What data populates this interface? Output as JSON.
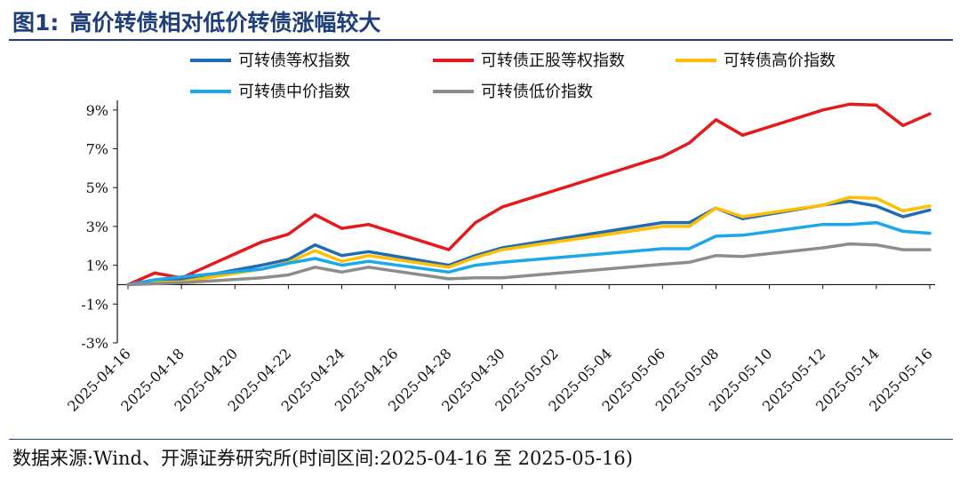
{
  "figure": {
    "label": "图1:",
    "title": "高价转债相对低价转债涨幅较大",
    "source": "数据来源:Wind、开源证券研究所(时间区间:2025-04-16 至 2025-05-16)"
  },
  "chart_data": {
    "type": "line",
    "title": "高价转债相对低价转债涨幅较大",
    "ylim": [
      -3,
      10
    ],
    "yticks": [
      -3,
      -1,
      1,
      3,
      5,
      7,
      9
    ],
    "ytick_labels": [
      "-3%",
      "-1%",
      "1%",
      "3%",
      "5%",
      "7%",
      "9%"
    ],
    "grid": false,
    "legend_position": "top",
    "xtick_labels": [
      "2025-04-16",
      "2025-04-18",
      "2025-04-20",
      "2025-04-22",
      "2025-04-24",
      "2025-04-26",
      "2025-04-28",
      "2025-04-30",
      "2025-05-02",
      "2025-05-04",
      "2025-05-06",
      "2025-05-08",
      "2025-05-10",
      "2025-05-12",
      "2025-05-14",
      "2025-05-16"
    ],
    "x": [
      "2025-04-16",
      "2025-04-17",
      "2025-04-18",
      "2025-04-21",
      "2025-04-22",
      "2025-04-23",
      "2025-04-24",
      "2025-04-25",
      "2025-04-28",
      "2025-04-29",
      "2025-04-30",
      "2025-05-06",
      "2025-05-07",
      "2025-05-08",
      "2025-05-09",
      "2025-05-12",
      "2025-05-13",
      "2025-05-14",
      "2025-05-15",
      "2025-05-16"
    ],
    "series": [
      {
        "name": "可转债等权指数",
        "color": "#1f6bb5",
        "values": [
          0.0,
          0.2,
          0.25,
          1.0,
          1.3,
          2.05,
          1.5,
          1.7,
          1.0,
          1.5,
          1.9,
          3.2,
          3.2,
          3.95,
          3.4,
          4.1,
          4.3,
          4.05,
          3.5,
          3.85
        ]
      },
      {
        "name": "可转债正股等权指数",
        "color": "#e41a1c",
        "values": [
          0.0,
          0.6,
          0.35,
          2.2,
          2.6,
          3.6,
          2.9,
          3.1,
          1.8,
          3.2,
          4.0,
          6.6,
          7.3,
          8.5,
          7.7,
          9.0,
          9.3,
          9.25,
          8.2,
          8.8
        ]
      },
      {
        "name": "可转债高价指数",
        "color": "#ffbf00",
        "values": [
          0.0,
          0.1,
          0.15,
          0.8,
          1.15,
          1.75,
          1.2,
          1.5,
          0.9,
          1.4,
          1.8,
          3.0,
          3.0,
          3.95,
          3.5,
          4.1,
          4.5,
          4.45,
          3.8,
          4.05
        ]
      },
      {
        "name": "可转债中价指数",
        "color": "#1aa7ec",
        "values": [
          0.0,
          0.25,
          0.4,
          0.8,
          1.1,
          1.35,
          1.0,
          1.2,
          0.65,
          1.0,
          1.15,
          1.85,
          1.85,
          2.5,
          2.55,
          3.1,
          3.1,
          3.2,
          2.75,
          2.65
        ]
      },
      {
        "name": "可转债低价指数",
        "color": "#8c8c8c",
        "values": [
          0.0,
          0.05,
          0.1,
          0.35,
          0.5,
          0.9,
          0.65,
          0.9,
          0.3,
          0.35,
          0.35,
          1.05,
          1.15,
          1.5,
          1.45,
          1.9,
          2.1,
          2.05,
          1.8,
          1.8
        ]
      }
    ]
  }
}
